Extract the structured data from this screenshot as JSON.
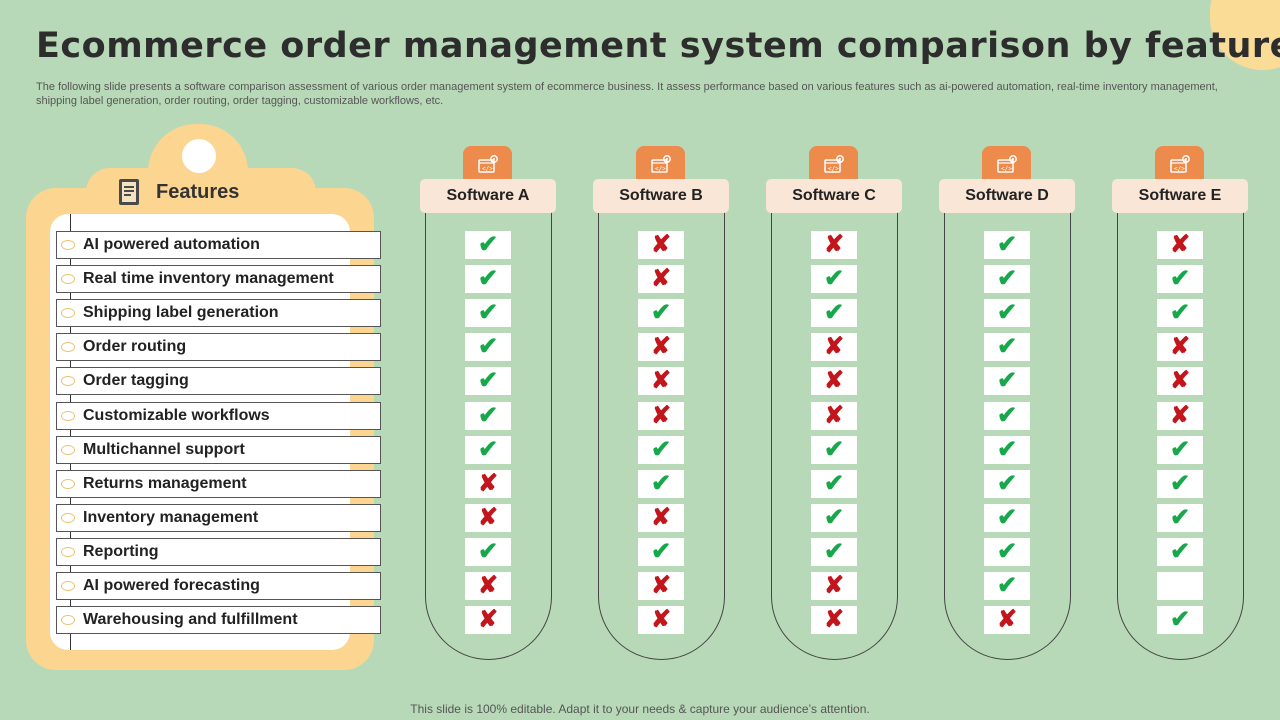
{
  "title": "Ecommerce order management system comparison by features",
  "subtitle": "The following slide presents a software comparison assessment of various order management system of ecommerce business. It assess performance based on various features such as ai-powered automation, real-time inventory management, shipping label generation, order routing, order tagging, customizable workflows, etc.",
  "features_heading": "Features",
  "features": [
    "AI powered automation",
    "Real time inventory management",
    "Shipping label generation",
    "Order routing",
    "Order tagging",
    "Customizable workflows",
    "Multichannel support",
    "Returns management",
    "Inventory management",
    "Reporting",
    "AI powered forecasting",
    "Warehousing and fulfillment"
  ],
  "software": [
    {
      "name": "Software A",
      "marks": [
        "check",
        "check",
        "check",
        "check",
        "check",
        "check",
        "check",
        "cross",
        "cross",
        "check",
        "cross",
        "cross"
      ]
    },
    {
      "name": "Software B",
      "marks": [
        "cross",
        "cross",
        "check",
        "cross",
        "cross",
        "cross",
        "check",
        "check",
        "cross",
        "check",
        "cross",
        "cross"
      ]
    },
    {
      "name": "Software C",
      "marks": [
        "cross",
        "check",
        "check",
        "cross",
        "cross",
        "cross",
        "check",
        "check",
        "check",
        "check",
        "cross",
        "cross"
      ]
    },
    {
      "name": "Software D",
      "marks": [
        "check",
        "check",
        "check",
        "check",
        "check",
        "check",
        "check",
        "check",
        "check",
        "check",
        "check",
        "cross"
      ]
    },
    {
      "name": "Software E",
      "marks": [
        "cross",
        "check",
        "check",
        "cross",
        "cross",
        "cross",
        "check",
        "check",
        "check",
        "check",
        "",
        "check"
      ]
    }
  ],
  "icons": {
    "check": "✔",
    "cross": "✘",
    "software_icon": "code-gear-icon",
    "features_icon": "book-icon"
  },
  "colors": {
    "check": "#18a84b",
    "cross": "#c3161c",
    "accent": "#ec8b4c",
    "background": "#b8d9b8",
    "clipboard": "#fcd690"
  },
  "footer": "This slide is 100% editable. Adapt it to your needs & capture your audience’s attention."
}
